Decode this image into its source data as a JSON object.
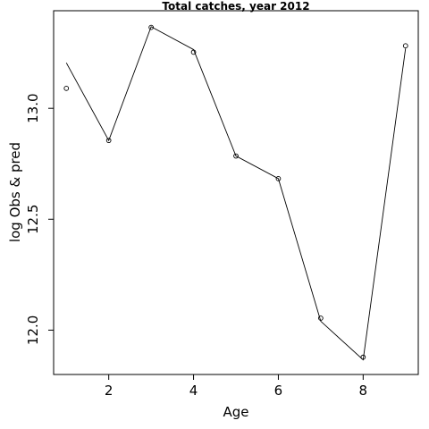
{
  "chart_data": {
    "type": "line",
    "title": "Total catches, year 2012",
    "xlabel": "Age",
    "ylabel": "log Obs & pred",
    "xlim": [
      0.7,
      9.3
    ],
    "ylim": [
      11.8,
      13.44
    ],
    "x_ticks": [
      2,
      4,
      6,
      8
    ],
    "x_tick_labels": [
      "2",
      "4",
      "6",
      "8"
    ],
    "y_ticks": [
      12.0,
      12.5,
      13.0
    ],
    "y_tick_labels": [
      "12.0",
      "12.5",
      "13.0"
    ],
    "grid": false,
    "legend": "none",
    "series": [
      {
        "style": "points",
        "marker": "open-circle",
        "x": [
          1,
          2,
          3,
          4,
          5,
          6,
          7,
          8,
          9
        ],
        "y": [
          13.09,
          12.855,
          13.365,
          13.253,
          12.785,
          12.683,
          12.054,
          11.878,
          13.282
        ]
      },
      {
        "style": "line",
        "x": [
          1,
          2,
          3,
          4,
          5,
          6,
          7,
          8,
          9
        ],
        "y": [
          13.205,
          12.855,
          13.368,
          13.265,
          12.785,
          12.683,
          12.04,
          11.866,
          13.27
        ]
      }
    ]
  }
}
